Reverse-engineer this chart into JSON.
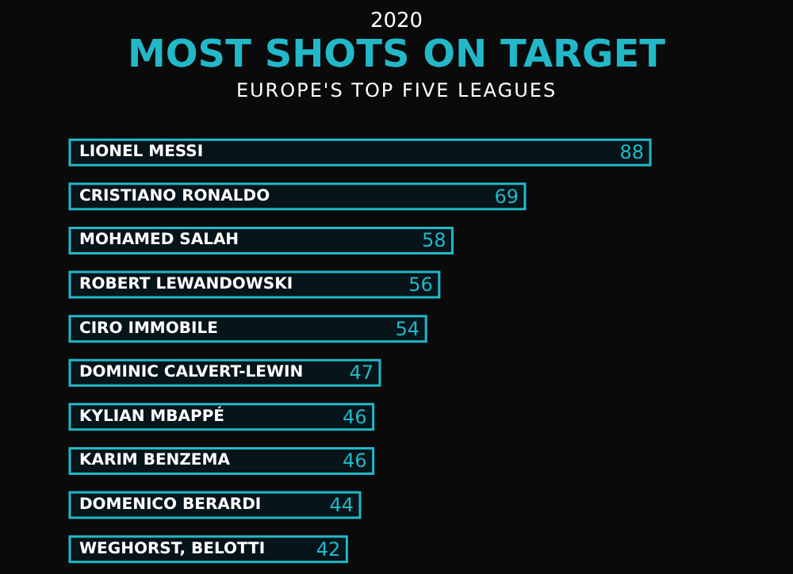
{
  "chart_data": {
    "type": "bar",
    "orientation": "horizontal",
    "title": "MOST SHOTS ON TARGET",
    "subtitle": "EUROPE'S TOP FIVE LEAGUES",
    "annotations": [
      "2020"
    ],
    "categories": [
      "LIONEL MESSI",
      "CRISTIANO RONALDO",
      "MOHAMED SALAH",
      "ROBERT LEWANDOWSKI",
      "CIRO IMMOBILE",
      "DOMINIC CALVERT-LEWIN",
      "KYLIAN MBAPPÉ",
      "KARIM BENZEMA",
      "DOMENICO BERARDI",
      "WEGHORST, BELOTTI"
    ],
    "values": [
      88,
      69,
      58,
      56,
      54,
      47,
      46,
      46,
      44,
      42
    ],
    "color": "#22b8c8",
    "data_labels": true
  }
}
